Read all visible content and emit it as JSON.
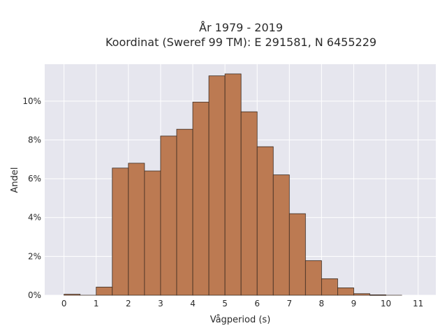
{
  "chart_data": {
    "type": "bar",
    "title_line1": "År 1979 - 2019",
    "title_line2": "Koordinat (Sweref 99 TM): E 291581, N 6455229",
    "xlabel": "Vågperiod (s)",
    "ylabel": "Andel",
    "xlim": [
      -0.6,
      11.55
    ],
    "ylim": [
      0,
      11.9
    ],
    "x_ticks": [
      0,
      1,
      2,
      3,
      4,
      5,
      6,
      7,
      8,
      9,
      10,
      11
    ],
    "x_tick_labels": [
      "0",
      "1",
      "2",
      "3",
      "4",
      "5",
      "6",
      "7",
      "8",
      "9",
      "10",
      "11"
    ],
    "y_ticks": [
      0,
      2,
      4,
      6,
      8,
      10
    ],
    "y_tick_labels": [
      "0%",
      "2%",
      "4%",
      "6%",
      "8%",
      "10%"
    ],
    "bin_width": 0.5,
    "bin_starts": [
      0,
      0.5,
      1,
      1.5,
      2,
      2.5,
      3,
      3.5,
      4,
      4.5,
      5,
      5.5,
      6,
      6.5,
      7,
      7.5,
      8,
      8.5,
      9,
      9.5,
      10
    ],
    "values": [
      0.05,
      0,
      0.42,
      6.55,
      6.8,
      6.4,
      8.2,
      8.55,
      9.95,
      11.3,
      11.4,
      9.45,
      7.65,
      6.2,
      4.2,
      1.78,
      0.85,
      0.38,
      0.08,
      0.02,
      0
    ],
    "grid": true,
    "colors": {
      "bar_fill": "#bc7a52",
      "bar_edge": "#3a2a20",
      "plot_bg": "#e6e6ee",
      "grid": "#ffffff"
    }
  }
}
